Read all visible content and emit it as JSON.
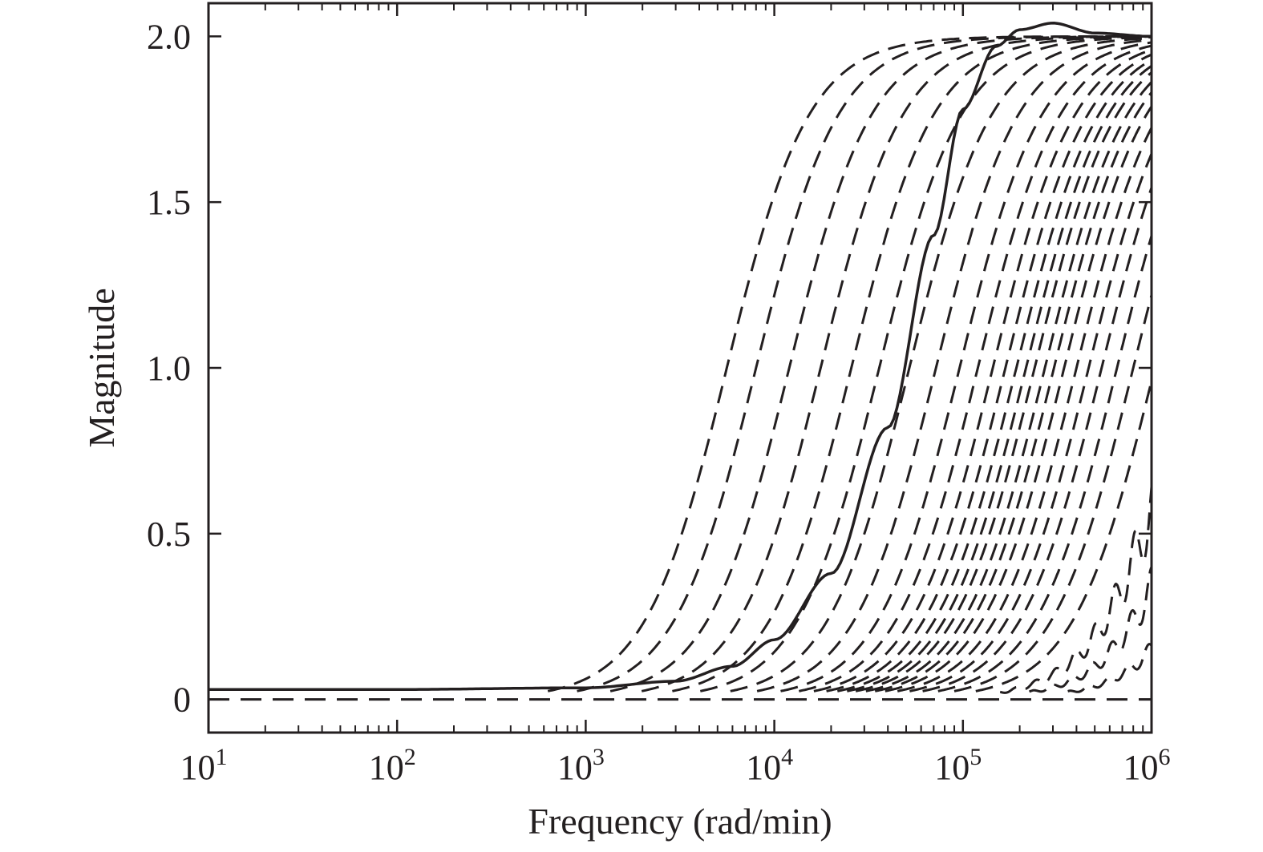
{
  "chart_data": {
    "type": "line",
    "title": "",
    "xlabel": "Frequency (rad/min)",
    "ylabel": "Magnitude",
    "xscale": "log",
    "xlim": [
      10,
      1000000
    ],
    "ylim": [
      -0.1,
      2.1
    ],
    "grid": false,
    "legend": "none",
    "x_ticks": [
      {
        "value": 10,
        "base": "10",
        "exp": "1"
      },
      {
        "value": 100,
        "base": "10",
        "exp": "2"
      },
      {
        "value": 1000,
        "base": "10",
        "exp": "3"
      },
      {
        "value": 10000,
        "base": "10",
        "exp": "4"
      },
      {
        "value": 100000,
        "base": "10",
        "exp": "5"
      },
      {
        "value": 1000000,
        "base": "10",
        "exp": "6"
      }
    ],
    "y_ticks": [
      {
        "value": 0,
        "label": "0"
      },
      {
        "value": 0.5,
        "label": "0.5"
      },
      {
        "value": 1.0,
        "label": "1.0"
      },
      {
        "value": 1.5,
        "label": "1.5"
      },
      {
        "value": 2.0,
        "label": "2.0"
      }
    ],
    "series": [
      {
        "style": "solid",
        "x": [
          10,
          100,
          1000,
          3000,
          6000,
          10000,
          20000,
          40000,
          70000,
          100000,
          150000,
          200000,
          300000,
          500000,
          1000000
        ],
        "y": [
          0.03,
          0.03,
          0.035,
          0.055,
          0.1,
          0.18,
          0.38,
          0.82,
          1.4,
          1.78,
          1.97,
          2.02,
          2.04,
          2.01,
          2.0
        ]
      },
      {
        "style": "dashed",
        "description_values": "family of dashed responses, onset shifting right",
        "x": [
          10,
          1000,
          10000,
          100000,
          1000000
        ],
        "y": [
          0.0,
          0.0,
          0.0,
          0.0,
          0.0
        ]
      }
    ],
    "dashed_family_onsets": [
      700,
      1000,
      1500,
      2200,
      3200,
      4500,
      6500,
      9000,
      12000,
      15000,
      18000,
      21000,
      24000,
      27000,
      30000,
      34000,
      38000,
      43000,
      50000,
      58000,
      68000,
      82000,
      100000,
      130000,
      175000,
      250000,
      400000
    ],
    "color": "#231f20"
  }
}
